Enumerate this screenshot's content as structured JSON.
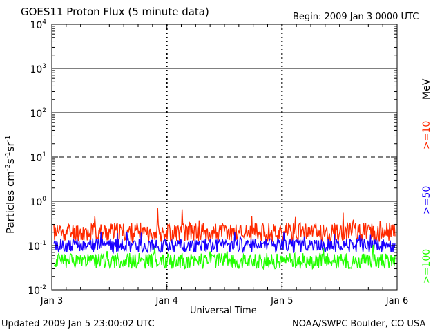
{
  "header": {
    "title": "GOES11 Proton Flux (5 minute data)",
    "begin": "Begin: 2009 Jan 3 0000 UTC"
  },
  "footer": {
    "updated": "Updated 2009 Jan  5 23:00:02 UTC",
    "credit": "NOAA/SWPC Boulder, CO USA"
  },
  "colors": {
    "ge10": "#ff2a00",
    "ge50": "#1a00ff",
    "ge100": "#22ff00",
    "axis": "#000000"
  },
  "chart_data": {
    "type": "line",
    "title": "GOES11 Proton Flux (5 minute data)",
    "ylabel_parts": [
      "Particles cm",
      "-2",
      "s",
      "-1",
      "sr",
      "-1"
    ],
    "xlabel": "Universal Time",
    "yscale": "log",
    "ylim": [
      0.01,
      10000
    ],
    "y_ticks": [
      {
        "base": "10",
        "exp": "-2",
        "value": 0.01
      },
      {
        "base": "10",
        "exp": "-1",
        "value": 0.1
      },
      {
        "base": "10",
        "exp": "0",
        "value": 1
      },
      {
        "base": "10",
        "exp": "1",
        "value": 10
      },
      {
        "base": "10",
        "exp": "2",
        "value": 100
      },
      {
        "base": "10",
        "exp": "3",
        "value": 1000
      },
      {
        "base": "10",
        "exp": "4",
        "value": 10000
      }
    ],
    "x_ticks": [
      "Jan 3",
      "Jan 4",
      "Jan 5",
      "Jan 6"
    ],
    "threshold_lines": [
      {
        "value": 1,
        "style": "solid"
      },
      {
        "value": 10,
        "style": "dashed"
      },
      {
        "value": 100,
        "style": "solid"
      },
      {
        "value": 1000,
        "style": "solid"
      }
    ],
    "unit_label": "MeV",
    "series": [
      {
        "name": ">=10",
        "color": "#ff2a00",
        "typical": 0.2,
        "min": 0.12,
        "max": 0.75
      },
      {
        "name": ">=50",
        "color": "#1a00ff",
        "typical": 0.1,
        "min": 0.06,
        "max": 0.22
      },
      {
        "name": ">=100",
        "color": "#22ff00",
        "typical": 0.045,
        "min": 0.025,
        "max": 0.11
      }
    ]
  }
}
